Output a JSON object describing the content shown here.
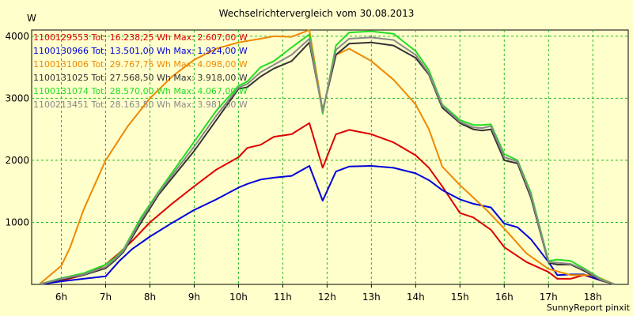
{
  "chart_data": {
    "type": "line",
    "title": "Wechselrichtervergleich vom 30.08.2013",
    "ylabel": "W",
    "xlabel": "",
    "footer": "SunnyReport pinxit",
    "xlim": [
      5.33,
      18.8
    ],
    "ylim": [
      0,
      4100
    ],
    "yticks": [
      1000,
      2000,
      3000,
      4000
    ],
    "xticks": [
      {
        "label": "6h",
        "value": 6
      },
      {
        "label": "7h",
        "value": 7
      },
      {
        "label": "8h",
        "value": 8
      },
      {
        "label": "9h",
        "value": 9
      },
      {
        "label": "10h",
        "value": 10
      },
      {
        "label": "11h",
        "value": 11
      },
      {
        "label": "12h",
        "value": 12
      },
      {
        "label": "13h",
        "value": 13
      },
      {
        "label": "14h",
        "value": 14
      },
      {
        "label": "15h",
        "value": 15
      },
      {
        "label": "16h",
        "value": 16
      },
      {
        "label": "17h",
        "value": 17
      },
      {
        "label": "18h",
        "value": 18
      }
    ],
    "grid": true,
    "legend_position": "top-left",
    "series": [
      {
        "name": "1100129553",
        "legend": "1100129553 Tot: 16.238,25 Wh Max: 2.607,00 W",
        "color": "#dd0000",
        "x": [
          5.5,
          6.0,
          6.5,
          7.0,
          7.3,
          7.6,
          8.0,
          8.5,
          9.0,
          9.5,
          10.0,
          10.2,
          10.5,
          10.8,
          11.2,
          11.6,
          11.9,
          12.2,
          12.5,
          13.0,
          13.5,
          14.0,
          14.3,
          14.6,
          15.0,
          15.3,
          15.7,
          16.0,
          16.5,
          17.0,
          17.2,
          17.5,
          17.8,
          18.2,
          18.5
        ],
        "y": [
          0,
          60,
          150,
          320,
          500,
          700,
          1000,
          1300,
          1580,
          1850,
          2050,
          2200,
          2250,
          2380,
          2420,
          2600,
          1880,
          2420,
          2490,
          2420,
          2290,
          2080,
          1880,
          1580,
          1150,
          1080,
          880,
          600,
          360,
          200,
          90,
          90,
          150,
          60,
          0
        ]
      },
      {
        "name": "1100130966",
        "legend": "1100130966 Tot: 13.501,00 Wh Max: 1.924,00 W",
        "color": "#0000dd",
        "x": [
          5.5,
          6.0,
          6.5,
          7.0,
          7.3,
          7.6,
          8.0,
          8.5,
          9.0,
          9.5,
          10.0,
          10.2,
          10.5,
          10.8,
          11.2,
          11.6,
          11.9,
          12.2,
          12.5,
          13.0,
          13.5,
          14.0,
          14.3,
          14.6,
          15.0,
          15.3,
          15.7,
          16.0,
          16.3,
          16.6,
          17.0,
          17.2,
          17.5,
          17.8,
          18.2,
          18.5
        ],
        "y": [
          0,
          50,
          90,
          130,
          370,
          570,
          770,
          990,
          1200,
          1370,
          1560,
          1620,
          1690,
          1720,
          1750,
          1910,
          1350,
          1820,
          1900,
          1910,
          1880,
          1790,
          1680,
          1520,
          1370,
          1300,
          1240,
          980,
          920,
          730,
          360,
          150,
          160,
          160,
          60,
          0
        ]
      },
      {
        "name": "1100131006",
        "legend": "1100131006 Tot: 29.767,75 Wh Max: 4.098,00 W",
        "color": "#ee8800",
        "x": [
          5.5,
          6.0,
          6.2,
          6.5,
          7.0,
          7.5,
          8.0,
          8.5,
          9.0,
          9.5,
          10.0,
          10.5,
          10.8,
          11.2,
          11.6,
          11.9,
          12.2,
          12.5,
          13.0,
          13.5,
          14.0,
          14.3,
          14.6,
          15.0,
          15.3,
          15.6,
          16.0,
          16.5,
          17.0,
          17.5,
          18.0,
          18.5
        ],
        "y": [
          0,
          300,
          600,
          1200,
          2000,
          2550,
          3000,
          3350,
          3620,
          3800,
          3900,
          3960,
          4000,
          3990,
          4100,
          2800,
          3700,
          3800,
          3600,
          3300,
          2900,
          2500,
          1900,
          1600,
          1400,
          1200,
          900,
          500,
          250,
          150,
          150,
          0
        ]
      },
      {
        "name": "1100131025",
        "legend": "1100131025 Tot: 27.568,50 Wh Max: 3.918,00 W",
        "color": "#333333",
        "x": [
          5.5,
          6.0,
          6.5,
          7.0,
          7.2,
          7.4,
          7.8,
          8.2,
          8.6,
          9.0,
          9.5,
          10.0,
          10.2,
          10.5,
          10.8,
          11.2,
          11.6,
          11.9,
          12.2,
          12.5,
          13.0,
          13.5,
          14.0,
          14.3,
          14.6,
          15.0,
          15.3,
          15.5,
          15.7,
          16.0,
          16.3,
          16.6,
          17.0,
          17.2,
          17.5,
          17.8,
          18.2,
          18.5
        ],
        "y": [
          0,
          80,
          150,
          260,
          380,
          520,
          1000,
          1450,
          1800,
          2150,
          2650,
          3150,
          3180,
          3350,
          3480,
          3600,
          3900,
          2800,
          3700,
          3880,
          3900,
          3850,
          3650,
          3380,
          2850,
          2600,
          2500,
          2480,
          2500,
          2000,
          1950,
          1400,
          350,
          320,
          320,
          220,
          60,
          0
        ]
      },
      {
        "name": "1100131074",
        "legend": "1100131074 Tot: 28.570,00 Wh Max: 4.067,00 W",
        "color": "#22dd22",
        "x": [
          5.5,
          6.0,
          6.5,
          7.0,
          7.2,
          7.4,
          7.8,
          8.2,
          8.6,
          9.0,
          9.5,
          10.0,
          10.2,
          10.5,
          10.8,
          11.2,
          11.6,
          11.9,
          12.2,
          12.5,
          13.0,
          13.5,
          14.0,
          14.3,
          14.6,
          15.0,
          15.3,
          15.5,
          15.7,
          16.0,
          16.3,
          16.6,
          17.0,
          17.2,
          17.5,
          17.8,
          18.2,
          18.5
        ],
        "y": [
          0,
          100,
          180,
          320,
          420,
          560,
          1080,
          1500,
          1900,
          2300,
          2800,
          3200,
          3270,
          3500,
          3600,
          3820,
          4030,
          2750,
          3850,
          4060,
          4080,
          4040,
          3760,
          3450,
          2900,
          2650,
          2570,
          2570,
          2580,
          2100,
          2000,
          1480,
          380,
          400,
          380,
          260,
          80,
          0
        ]
      },
      {
        "name": "1100213451",
        "legend": "1100213451 Tot: 28.163,50 Wh Max: 3.981,00 W",
        "color": "#888888",
        "x": [
          5.5,
          6.0,
          6.5,
          7.0,
          7.2,
          7.4,
          7.8,
          8.2,
          8.6,
          9.0,
          9.5,
          10.0,
          10.2,
          10.5,
          10.8,
          11.2,
          11.6,
          11.9,
          12.2,
          12.5,
          13.0,
          13.5,
          14.0,
          14.3,
          14.6,
          15.0,
          15.3,
          15.5,
          15.7,
          16.0,
          16.3,
          16.6,
          17.0,
          17.2,
          17.5,
          17.8,
          18.2,
          18.5
        ],
        "y": [
          0,
          90,
          160,
          280,
          400,
          540,
          1040,
          1480,
          1850,
          2220,
          2720,
          3170,
          3230,
          3420,
          3540,
          3700,
          3960,
          2780,
          3780,
          3960,
          3980,
          3940,
          3700,
          3400,
          2880,
          2620,
          2530,
          2520,
          2550,
          2050,
          1980,
          1440,
          360,
          350,
          330,
          240,
          70,
          0
        ]
      }
    ]
  }
}
